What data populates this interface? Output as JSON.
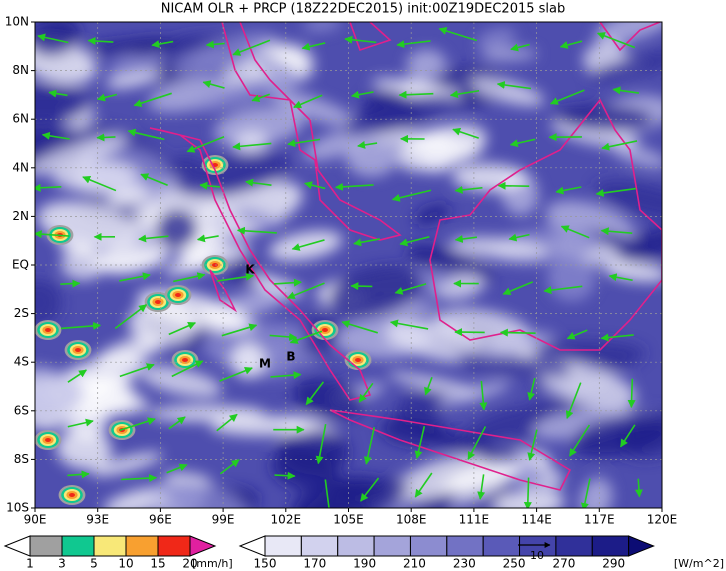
{
  "title": "NICAM OLR + PRCP (18Z22DEC2015) init:00Z19DEC2015 slab",
  "map": {
    "lon_labels": [
      "90E",
      "93E",
      "96E",
      "99E",
      "102E",
      "105E",
      "108E",
      "111E",
      "114E",
      "117E",
      "120E"
    ],
    "lat_labels": [
      "10N",
      "8N",
      "6N",
      "4N",
      "2N",
      "EQ",
      "2S",
      "4S",
      "6S",
      "8S",
      "10S"
    ],
    "markers": [
      "K",
      "M",
      "B"
    ]
  },
  "precip_legend": {
    "labels": [
      "1",
      "3",
      "5",
      "10",
      "15",
      "20"
    ],
    "unit": "[mm/h]",
    "colors": [
      "#ffffff",
      "#a0a0a0",
      "#10c890",
      "#f8e878",
      "#f8a030",
      "#f02818",
      "#e020a0"
    ]
  },
  "olr_legend": {
    "labels": [
      "150",
      "170",
      "190",
      "210",
      "230",
      "250",
      "270",
      "290"
    ],
    "unit": "[W/m^2]",
    "colors": [
      "#ffffff",
      "#e8e8f6",
      "#d2d2ee",
      "#bcbce4",
      "#a4a4da",
      "#8c8cd0",
      "#7272c4",
      "#5a5ab8",
      "#4444aa",
      "#30309a",
      "#1c1c88",
      "#0c0c74"
    ]
  },
  "vector_reference": "10"
}
